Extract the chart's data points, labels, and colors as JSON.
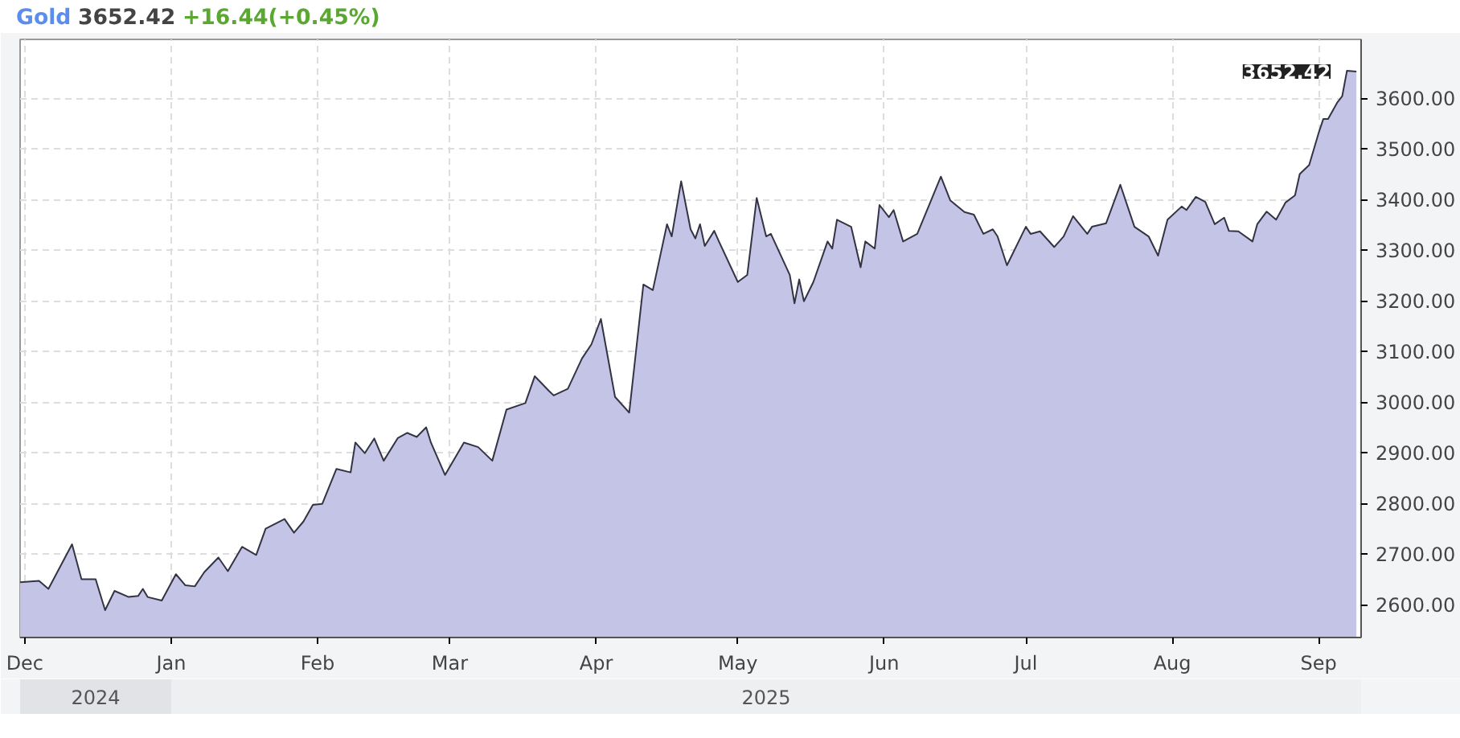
{
  "chart_data": {
    "type": "area",
    "title": "Gold",
    "subtitle": "3652.42",
    "annotations": [
      "+16.44(+0.45%)",
      "2024",
      "2025",
      {
        "text": "3652.42",
        "x": "2025-09-09",
        "y": 3652.42
      }
    ],
    "x": [
      "2024-11-30",
      "2024-12-04",
      "2024-12-06",
      "2024-12-11",
      "2024-12-13",
      "2024-12-16",
      "2024-12-18",
      "2024-12-20",
      "2024-12-23",
      "2024-12-25",
      "2024-12-26",
      "2024-12-27",
      "2024-12-30",
      "2025-01-02",
      "2025-01-04",
      "2025-01-06",
      "2025-01-08",
      "2025-01-11",
      "2025-01-13",
      "2025-01-16",
      "2025-01-19",
      "2025-01-21",
      "2025-01-25",
      "2025-01-27",
      "2025-01-29",
      "2025-01-31",
      "2025-02-02",
      "2025-02-05",
      "2025-02-08",
      "2025-02-09",
      "2025-02-11",
      "2025-02-13",
      "2025-02-15",
      "2025-02-18",
      "2025-02-20",
      "2025-02-22",
      "2025-02-24",
      "2025-02-25",
      "2025-02-28",
      "2025-03-04",
      "2025-03-07",
      "2025-03-10",
      "2025-03-13",
      "2025-03-17",
      "2025-03-19",
      "2025-03-22",
      "2025-03-23",
      "2025-03-26",
      "2025-03-29",
      "2025-03-31",
      "2025-04-02",
      "2025-04-05",
      "2025-04-08",
      "2025-04-11",
      "2025-04-13",
      "2025-04-16",
      "2025-04-17",
      "2025-04-19",
      "2025-04-21",
      "2025-04-22",
      "2025-04-23",
      "2025-04-24",
      "2025-04-26",
      "2025-04-27",
      "2025-05-01",
      "2025-05-03",
      "2025-05-05",
      "2025-05-07",
      "2025-05-08",
      "2025-05-12",
      "2025-05-13",
      "2025-05-14",
      "2025-05-15",
      "2025-05-17",
      "2025-05-20",
      "2025-05-21",
      "2025-05-22",
      "2025-05-25",
      "2025-05-27",
      "2025-05-28",
      "2025-05-30",
      "2025-05-31",
      "2025-06-02",
      "2025-06-03",
      "2025-06-05",
      "2025-06-08",
      "2025-06-13",
      "2025-06-15",
      "2025-06-18",
      "2025-06-20",
      "2025-06-22",
      "2025-06-24",
      "2025-06-25",
      "2025-06-27",
      "2025-07-01",
      "2025-07-02",
      "2025-07-04",
      "2025-07-07",
      "2025-07-09",
      "2025-07-11",
      "2025-07-14",
      "2025-07-15",
      "2025-07-18",
      "2025-07-21",
      "2025-07-24",
      "2025-07-27",
      "2025-07-29",
      "2025-07-31",
      "2025-08-03",
      "2025-08-04",
      "2025-08-06",
      "2025-08-08",
      "2025-08-10",
      "2025-08-12",
      "2025-08-13",
      "2025-08-15",
      "2025-08-18",
      "2025-08-19",
      "2025-08-21",
      "2025-08-23",
      "2025-08-25",
      "2025-08-27",
      "2025-08-28",
      "2025-08-30",
      "2025-09-01",
      "2025-09-02",
      "2025-09-03",
      "2025-09-05",
      "2025-09-06",
      "2025-09-07",
      "2025-09-09"
    ],
    "series": [
      {
        "color": "#c4c4e6",
        "values": [
          2644,
          2647,
          2631,
          2719,
          2650,
          2650,
          2589,
          2627,
          2615,
          2617,
          2631,
          2615,
          2608,
          2660,
          2638,
          2636,
          2664,
          2693,
          2666,
          2714,
          2698,
          2750,
          2769,
          2742,
          2764,
          2797,
          2799,
          2868,
          2861,
          2920,
          2899,
          2928,
          2884,
          2929,
          2939,
          2931,
          2950,
          2920,
          2856,
          2920,
          2911,
          2884,
          2985,
          2998,
          3051,
          3022,
          3013,
          3026,
          3086,
          3114,
          3164,
          3010,
          2979,
          3232,
          3221,
          3351,
          3327,
          3436,
          3341,
          3323,
          3351,
          3308,
          3338,
          3317,
          3237,
          3251,
          3403,
          3327,
          3332,
          3251,
          3195,
          3242,
          3199,
          3237,
          3317,
          3303,
          3360,
          3346,
          3266,
          3317,
          3303,
          3389,
          3365,
          3379,
          3317,
          3332,
          3445,
          3398,
          3375,
          3370,
          3332,
          3341,
          3327,
          3270,
          3346,
          3332,
          3337,
          3306,
          3327,
          3367,
          3332,
          3346,
          3353,
          3429,
          3346,
          3327,
          3289,
          3360,
          3386,
          3379,
          3405,
          3395,
          3351,
          3364,
          3338,
          3337,
          3317,
          3351,
          3376,
          3360,
          3394,
          3408,
          3450,
          3468,
          3531,
          3559,
          3559,
          3592,
          3604,
          3654,
          3652.42
        ]
      }
    ],
    "xlim": [
      "2024-11-30",
      "2025-09-10"
    ],
    "xticks": [
      {
        "value": "2024-12-01",
        "label": "Dec"
      },
      {
        "value": "2025-01-01",
        "label": "Jan"
      },
      {
        "value": "2025-02-01",
        "label": "Feb"
      },
      {
        "value": "2025-03-01",
        "label": "Mar"
      },
      {
        "value": "2025-04-01",
        "label": "Apr"
      },
      {
        "value": "2025-05-01",
        "label": "May"
      },
      {
        "value": "2025-06-01",
        "label": "Jun"
      },
      {
        "value": "2025-07-01",
        "label": "Jul"
      },
      {
        "value": "2025-08-01",
        "label": "Aug"
      },
      {
        "value": "2025-09-01",
        "label": "Sep"
      }
    ],
    "ylim": [
      2535,
      3716
    ],
    "yticks": [
      {
        "value": 2600,
        "label": "2600.00"
      },
      {
        "value": 2700,
        "label": "2700.00"
      },
      {
        "value": 2800,
        "label": "2800.00"
      },
      {
        "value": 2900,
        "label": "2900.00"
      },
      {
        "value": 3000,
        "label": "3000.00"
      },
      {
        "value": 3100,
        "label": "3100.00"
      },
      {
        "value": 3200,
        "label": "3200.00"
      },
      {
        "value": 3300,
        "label": "3300.00"
      },
      {
        "value": 3400,
        "label": "3400.00"
      },
      {
        "value": 3500,
        "label": "3500.00"
      },
      {
        "value": 3600,
        "label": "3600.00"
      }
    ],
    "grid": true
  }
}
